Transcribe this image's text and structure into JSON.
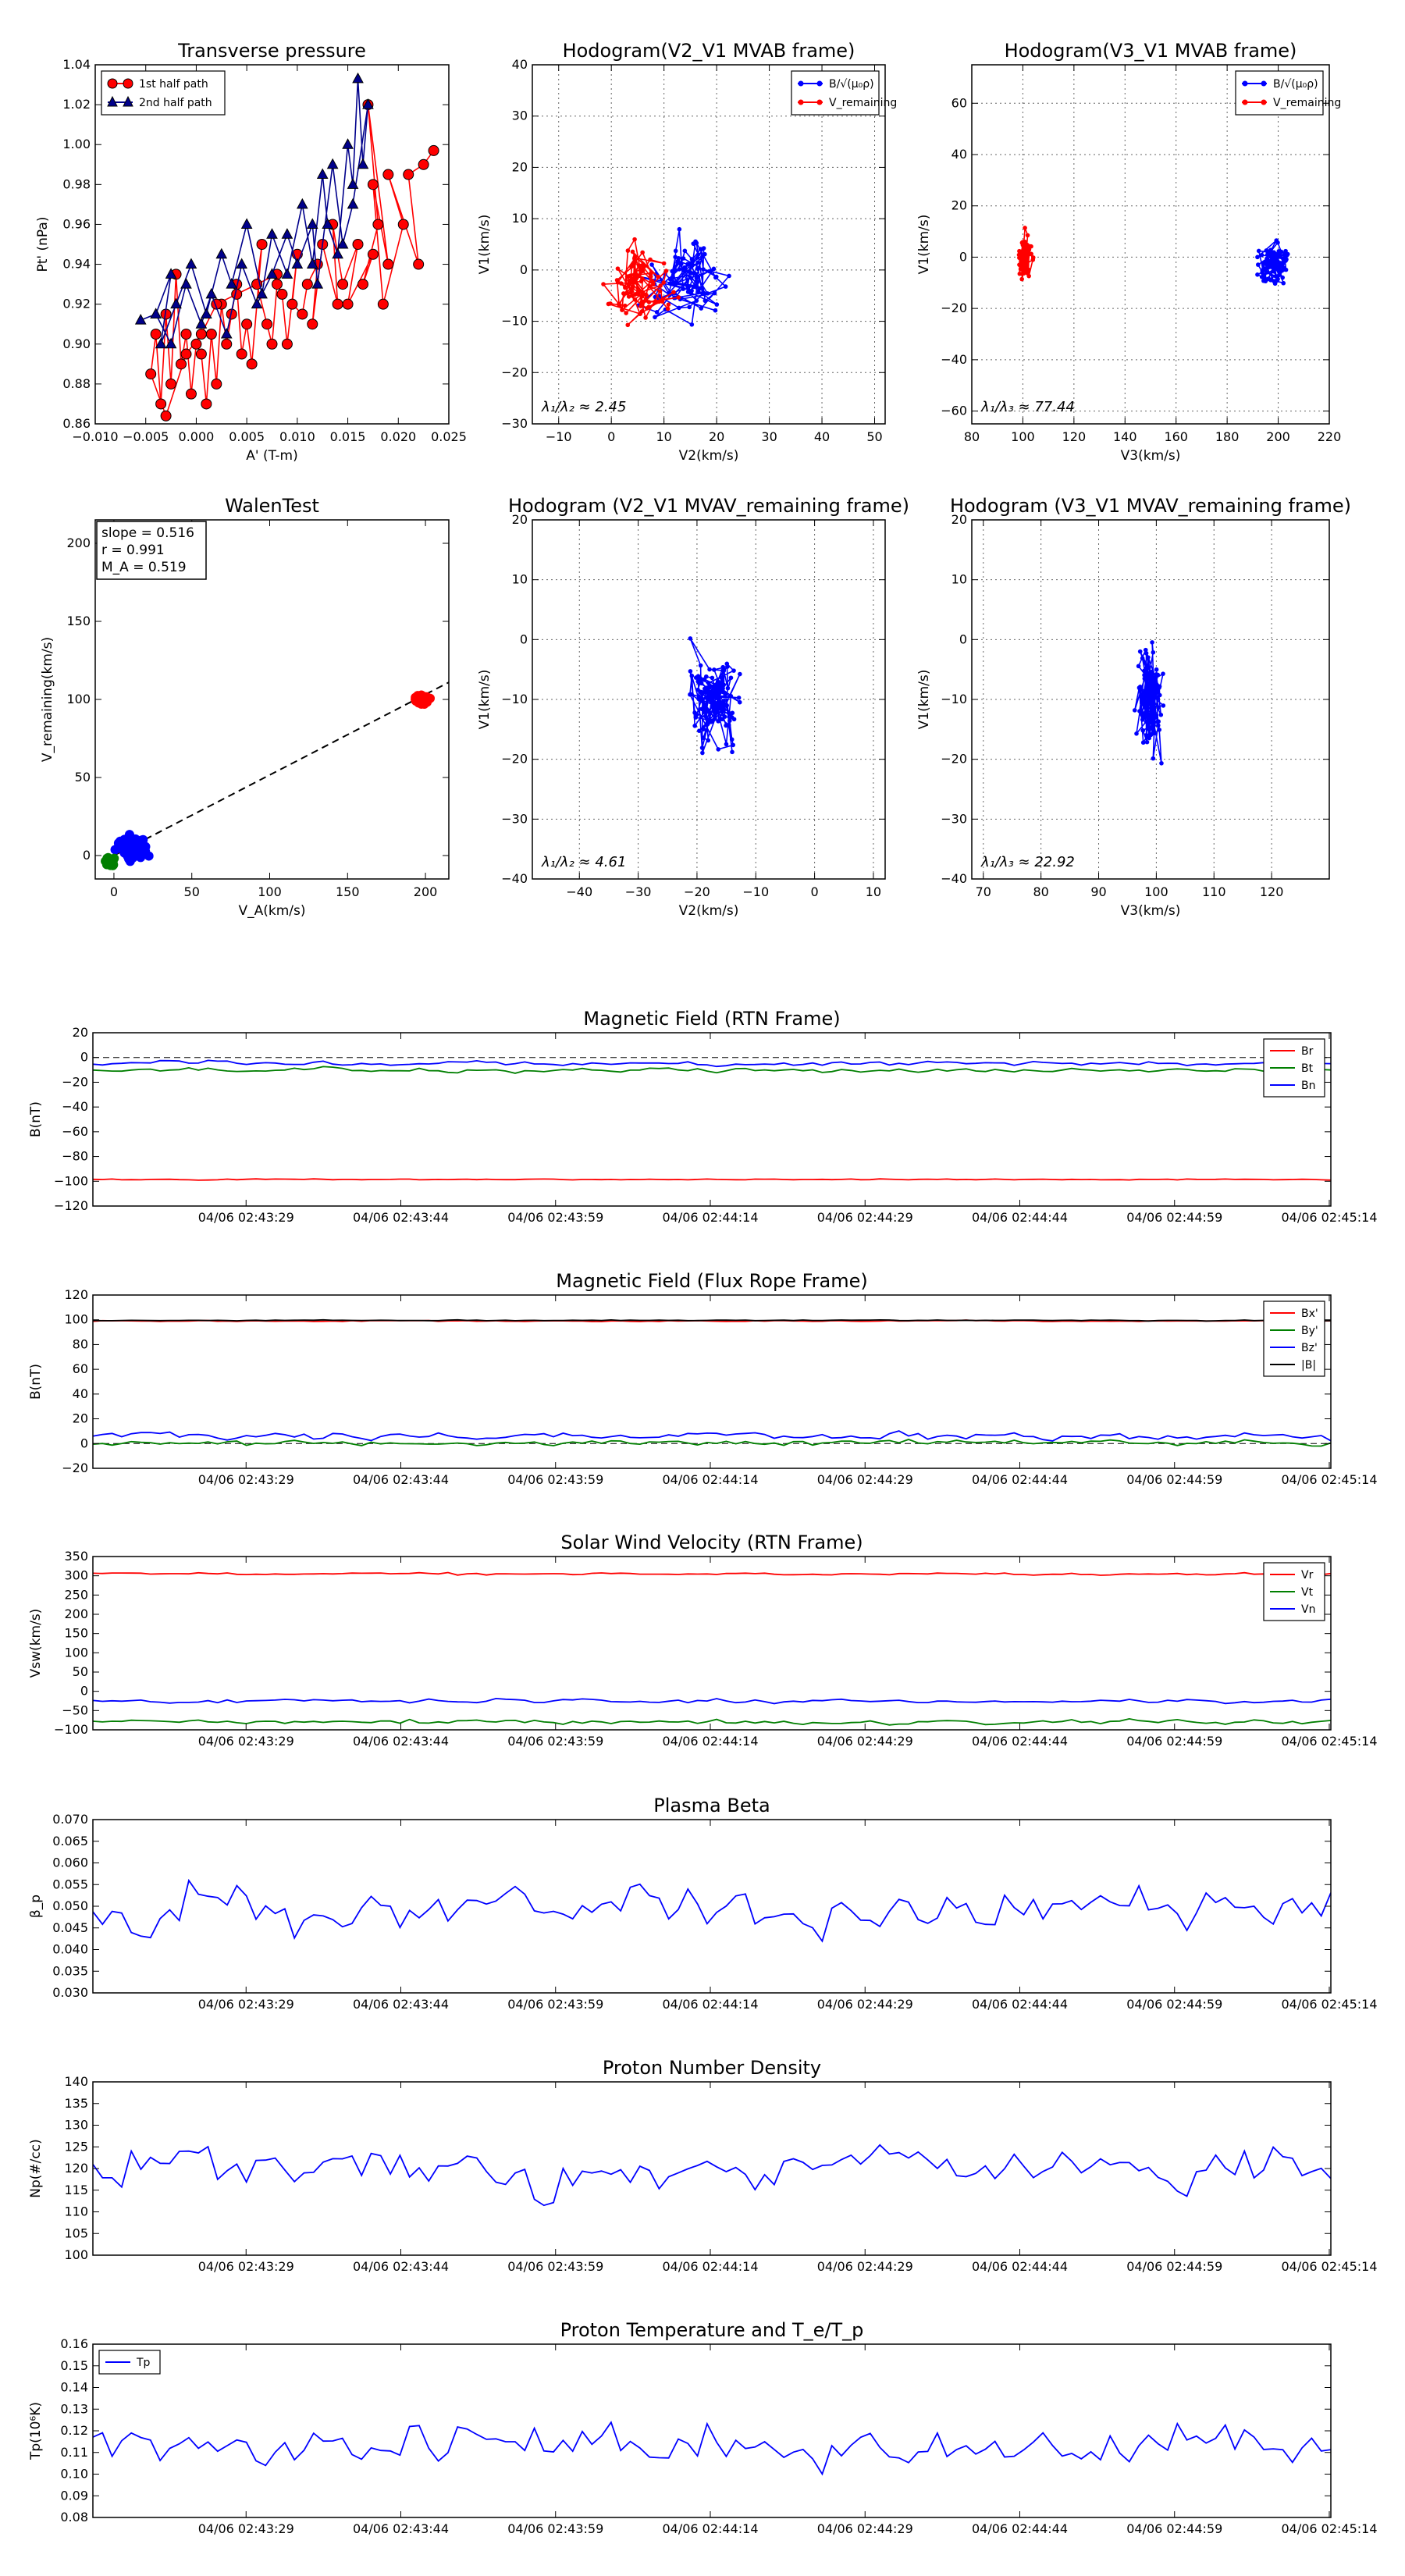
{
  "colors": {
    "red": "#ff0000",
    "blue": "#0000ff",
    "green": "#007f00",
    "black": "#000000",
    "darkblue": "#00008b",
    "darkred": "#b00000"
  },
  "time_ticks": [
    "04/06 02:43:29",
    "04/06 02:43:44",
    "04/06 02:43:59",
    "04/06 02:44:14",
    "04/06 02:44:29",
    "04/06 02:44:44",
    "04/06 02:44:59",
    "04/06 02:45:14"
  ],
  "chart_data": [
    {
      "id": "transverse-pressure",
      "type": "line",
      "title": "Transverse pressure",
      "xlabel": "A' (T-m)",
      "ylabel": "Pt' (nPa)",
      "xlim": [
        -0.01,
        0.025
      ],
      "ylim": [
        0.86,
        1.04
      ],
      "xticks": [
        -0.01,
        -0.005,
        0.0,
        0.005,
        0.01,
        0.015,
        0.02,
        0.025
      ],
      "xtick_labels": [
        "−0.010",
        "−0.005",
        "0.000",
        "0.005",
        "0.010",
        "0.015",
        "0.020",
        "0.025"
      ],
      "yticks": [
        0.86,
        0.88,
        0.9,
        0.92,
        0.94,
        0.96,
        0.98,
        1.0,
        1.02,
        1.04
      ],
      "ytick_labels": [
        "0.86",
        "0.88",
        "0.90",
        "0.92",
        "0.94",
        "0.96",
        "0.98",
        "1.00",
        "1.02",
        "1.04"
      ],
      "legend": [
        "1st half path",
        "2nd half path"
      ],
      "legend_position": "top-left",
      "series": [
        {
          "name": "1st half path",
          "color": "#ff0000",
          "marker": "circle",
          "x": [
            0.0235,
            0.0225,
            0.021,
            0.022,
            0.019,
            0.0205,
            0.0185,
            0.0175,
            0.019,
            0.017,
            0.018,
            0.0165,
            0.0175,
            0.015,
            0.016,
            0.0145,
            0.0135,
            0.014,
            0.0125,
            0.0115,
            0.012,
            0.011,
            0.0105,
            0.0095,
            0.01,
            0.009,
            0.0085,
            0.008,
            0.0075,
            0.007,
            0.006,
            0.0065,
            0.0055,
            0.005,
            0.0045,
            0.004,
            0.0035,
            0.003,
            0.0025,
            0.002,
            0.0015,
            0.001,
            0.0005,
            0.0,
            -0.0005,
            -0.001,
            -0.0015,
            -0.002,
            -0.0025,
            -0.003,
            -0.0035,
            -0.004,
            -0.0045,
            -0.003,
            -0.001,
            0.0005,
            0.002,
            0.004,
            0.006,
            0.008
          ],
          "y": [
            0.997,
            0.99,
            0.985,
            0.94,
            0.985,
            0.96,
            0.92,
            0.98,
            0.94,
            1.02,
            0.96,
            0.93,
            0.945,
            0.92,
            0.95,
            0.93,
            0.96,
            0.92,
            0.95,
            0.91,
            0.94,
            0.93,
            0.915,
            0.92,
            0.945,
            0.9,
            0.925,
            0.93,
            0.9,
            0.91,
            0.93,
            0.95,
            0.89,
            0.91,
            0.895,
            0.93,
            0.915,
            0.9,
            0.92,
            0.88,
            0.905,
            0.87,
            0.895,
            0.9,
            0.875,
            0.905,
            0.89,
            0.935,
            0.88,
            0.915,
            0.87,
            0.905,
            0.885,
            0.864,
            0.895,
            0.905,
            0.92,
            0.925,
            0.93,
            0.935
          ]
        },
        {
          "name": "2nd half path",
          "color": "#00008b",
          "marker": "triangle",
          "x": [
            -0.0055,
            -0.004,
            -0.0025,
            -0.0035,
            -0.002,
            -0.0005,
            0.001,
            0.0025,
            0.0035,
            0.005,
            0.0065,
            0.0075,
            0.009,
            0.0105,
            0.0115,
            0.0125,
            0.013,
            0.014,
            0.015,
            0.0155,
            0.016,
            0.0165,
            0.017,
            0.0155,
            0.0145,
            0.0135,
            0.012,
            0.0115,
            0.01,
            0.009,
            0.0075,
            0.006,
            0.0045,
            0.003,
            0.0015,
            0.0005,
            -0.001,
            -0.0025,
            -0.004
          ],
          "y": [
            0.912,
            0.915,
            0.935,
            0.9,
            0.92,
            0.94,
            0.915,
            0.945,
            0.93,
            0.96,
            0.925,
            0.955,
            0.935,
            0.97,
            0.94,
            0.985,
            0.96,
            0.945,
            1.0,
            0.98,
            1.033,
            0.99,
            1.02,
            0.97,
            0.95,
            0.99,
            0.93,
            0.96,
            0.94,
            0.955,
            0.935,
            0.92,
            0.94,
            0.905,
            0.925,
            0.91,
            0.93,
            0.9,
            0.915
          ]
        }
      ]
    },
    {
      "id": "hodogram-v2-v1-mvab",
      "type": "line",
      "title": "Hodogram(V2_V1 MVAB frame)",
      "xlabel": "V2(km/s)",
      "ylabel": "V1(km/s)",
      "xlim": [
        -15,
        52
      ],
      "ylim": [
        -30,
        40
      ],
      "xticks": [
        -10,
        0,
        10,
        20,
        30,
        40,
        50
      ],
      "yticks": [
        -30,
        -20,
        -10,
        0,
        10,
        20,
        30,
        40
      ],
      "legend": [
        "B/√(μ₀ρ)",
        "V_remaining"
      ],
      "legend_position": "top-right",
      "annotation": "λ₁/λ₂ ≈ 2.45",
      "series": [
        {
          "name": "B/√(μ₀ρ)",
          "color": "#0000ff",
          "generator": {
            "seed": 11,
            "n": 90,
            "cx": 14,
            "cy": -3,
            "sx": 8,
            "sy": 9,
            "xmin": 0,
            "xmax": 38,
            "ymin": -20,
            "ymax": 26
          }
        },
        {
          "name": "V_remaining",
          "color": "#ff0000",
          "generator": {
            "seed": 23,
            "n": 90,
            "cx": 5,
            "cy": -2,
            "sx": 6,
            "sy": 8,
            "xmin": -6,
            "xmax": 20,
            "ymin": -25,
            "ymax": 30
          }
        }
      ]
    },
    {
      "id": "hodogram-v3-v1-mvab",
      "type": "line",
      "title": "Hodogram(V3_V1 MVAB frame)",
      "xlabel": "V3(km/s)",
      "ylabel": "V1(km/s)",
      "xlim": [
        80,
        220
      ],
      "ylim": [
        -65,
        75
      ],
      "xticks": [
        80,
        100,
        120,
        140,
        160,
        180,
        200,
        220
      ],
      "yticks": [
        -60,
        -40,
        -20,
        0,
        20,
        40,
        60
      ],
      "legend": [
        "B/√(μ₀ρ)",
        "V_remaining"
      ],
      "legend_position": "top-right",
      "annotation": "λ₁/λ₃ ≈ 77.44",
      "series": [
        {
          "name": "B/√(μ₀ρ)",
          "color": "#0000ff",
          "generator": {
            "seed": 31,
            "n": 90,
            "cx": 198,
            "cy": -2,
            "sx": 7,
            "sy": 9,
            "xmin": 186,
            "xmax": 215,
            "ymin": -22,
            "ymax": 27
          }
        },
        {
          "name": "V_remaining",
          "color": "#ff0000",
          "generator": {
            "seed": 47,
            "n": 90,
            "cx": 101,
            "cy": 0,
            "sx": 2.5,
            "sy": 11,
            "xmin": 94,
            "xmax": 108,
            "ymin": -25,
            "ymax": 30
          }
        }
      ]
    },
    {
      "id": "walen-test",
      "type": "scatter",
      "title": "WalenTest",
      "xlabel": "V_A(km/s)",
      "ylabel": "V_remaining(km/s)",
      "xlim": [
        -12,
        215
      ],
      "ylim": [
        -15,
        215
      ],
      "xticks": [
        0,
        50,
        100,
        150,
        200
      ],
      "yticks": [
        0,
        50,
        100,
        150,
        200
      ],
      "stats": [
        "slope = 0.516",
        "r = 0.991",
        "M_A = 0.519"
      ],
      "fit": {
        "slope": 0.516,
        "intercept": 0,
        "style": "dashed"
      },
      "series": [
        {
          "name": "group-red",
          "color": "#ff0000",
          "generator": {
            "seed": 5,
            "n": 60,
            "cx": 198,
            "cy": 100,
            "sx": 5,
            "sy": 3,
            "xmin": 185,
            "xmax": 210,
            "ymin": 93,
            "ymax": 110
          }
        },
        {
          "name": "group-blue",
          "color": "#0000ff",
          "generator": {
            "seed": 9,
            "n": 110,
            "cx": 12,
            "cy": 5,
            "sx": 10,
            "sy": 9,
            "xmin": -5,
            "xmax": 45,
            "ymin": -8,
            "ymax": 38
          }
        },
        {
          "name": "group-green",
          "color": "#007f00",
          "generator": {
            "seed": 13,
            "n": 35,
            "cx": -3,
            "cy": -4,
            "sx": 3,
            "sy": 3,
            "xmin": -10,
            "xmax": 4,
            "ymin": -12,
            "ymax": 2
          }
        }
      ]
    },
    {
      "id": "hodogram-v2-v1-mvav",
      "type": "line",
      "title": "Hodogram (V2_V1 MVAV_remaining frame)",
      "xlabel": "V2(km/s)",
      "ylabel": "V1(km/s)",
      "xlim": [
        -48,
        12
      ],
      "ylim": [
        -40,
        20
      ],
      "xticks": [
        -40,
        -30,
        -20,
        -10,
        0,
        10
      ],
      "yticks": [
        -40,
        -30,
        -20,
        -10,
        0,
        10,
        20
      ],
      "annotation": "λ₁/λ₂ ≈ 4.61",
      "series": [
        {
          "name": "V_remaining",
          "color": "#0000ff",
          "generator": {
            "seed": 61,
            "n": 130,
            "cx": -17,
            "cy": -11,
            "sx": 5,
            "sy": 9,
            "xmin": -32,
            "xmax": -3,
            "ymin": -35,
            "ymax": 19
          }
        }
      ]
    },
    {
      "id": "hodogram-v3-v1-mvav",
      "type": "line",
      "title": "Hodogram (V3_V1 MVAV_remaining frame)",
      "xlabel": "V3(km/s)",
      "ylabel": "V1(km/s)",
      "xlim": [
        68,
        130
      ],
      "ylim": [
        -40,
        20
      ],
      "xticks": [
        70,
        80,
        90,
        100,
        110,
        120
      ],
      "yticks": [
        -40,
        -30,
        -20,
        -10,
        0,
        10,
        20
      ],
      "annotation": "λ₁/λ₃ ≈ 22.92",
      "series": [
        {
          "name": "V_remaining",
          "color": "#0000ff",
          "generator": {
            "seed": 71,
            "n": 130,
            "cx": 99,
            "cy": -11,
            "sx": 2.5,
            "sy": 9,
            "xmin": 93,
            "xmax": 106,
            "ymin": -33,
            "ymax": 19
          }
        }
      ]
    },
    {
      "id": "magnetic-field-rtn",
      "type": "line",
      "title": "Magnetic Field (RTN Frame)",
      "ylabel": "B(nT)",
      "ylim": [
        -120,
        20
      ],
      "yticks": [
        -120,
        -100,
        -80,
        -60,
        -40,
        -20,
        0,
        20
      ],
      "zero_line": true,
      "legend": [
        "Br",
        "Bt",
        "Bn"
      ],
      "legend_position": "top-right",
      "series": [
        {
          "name": "Br",
          "color": "#ff0000",
          "generator": {
            "seed": 101,
            "n": 130,
            "base": -98.5,
            "amp": 0.6
          }
        },
        {
          "name": "Bt",
          "color": "#007f00",
          "generator": {
            "seed": 102,
            "n": 130,
            "base": -10,
            "amp": 2.5
          }
        },
        {
          "name": "Bn",
          "color": "#0000ff",
          "generator": {
            "seed": 103,
            "n": 130,
            "base": -5,
            "amp": 2.5
          }
        }
      ]
    },
    {
      "id": "magnetic-field-flux-rope",
      "type": "line",
      "title": "Magnetic Field (Flux Rope Frame)",
      "ylabel": "B(nT)",
      "ylim": [
        -20,
        120
      ],
      "yticks": [
        -20,
        0,
        20,
        40,
        60,
        80,
        100,
        120
      ],
      "zero_line": true,
      "legend": [
        "Bx'",
        "By'",
        "Bz'",
        "|B|"
      ],
      "legend_position": "top-right",
      "series": [
        {
          "name": "Bx'",
          "color": "#ff0000",
          "generator": {
            "seed": 201,
            "n": 130,
            "base": 99,
            "amp": 0.6
          }
        },
        {
          "name": "By'",
          "color": "#007f00",
          "generator": {
            "seed": 202,
            "n": 130,
            "base": 1,
            "amp": 3
          }
        },
        {
          "name": "Bz'",
          "color": "#0000ff",
          "generator": {
            "seed": 203,
            "n": 130,
            "base": 6,
            "amp": 4
          }
        },
        {
          "name": "|B|",
          "color": "#000000",
          "generator": {
            "seed": 204,
            "n": 130,
            "base": 99.5,
            "amp": 0.5
          }
        }
      ]
    },
    {
      "id": "solar-wind-velocity",
      "type": "line",
      "title": "Solar Wind Velocity (RTN Frame)",
      "ylabel": "Vsw(km/s)",
      "ylim": [
        -100,
        350
      ],
      "yticks": [
        -100,
        -50,
        0,
        50,
        100,
        150,
        200,
        250,
        300,
        350
      ],
      "legend": [
        "Vr",
        "Vt",
        "Vn"
      ],
      "legend_position": "top-right",
      "series": [
        {
          "name": "Vr",
          "color": "#ff0000",
          "generator": {
            "seed": 301,
            "n": 130,
            "base": 305,
            "amp": 4
          }
        },
        {
          "name": "Vt",
          "color": "#007f00",
          "generator": {
            "seed": 302,
            "n": 130,
            "base": -80,
            "amp": 8
          }
        },
        {
          "name": "Vn",
          "color": "#0000ff",
          "generator": {
            "seed": 303,
            "n": 130,
            "base": -25,
            "amp": 7
          }
        }
      ]
    },
    {
      "id": "plasma-beta",
      "type": "line",
      "title": "Plasma Beta",
      "ylabel": "β_p",
      "ylim": [
        0.03,
        0.07
      ],
      "yticks": [
        0.03,
        0.035,
        0.04,
        0.045,
        0.05,
        0.055,
        0.06,
        0.065,
        0.07
      ],
      "ytick_labels": [
        "0.030",
        "0.035",
        "0.040",
        "0.045",
        "0.050",
        "0.055",
        "0.060",
        "0.065",
        "0.070"
      ],
      "series": [
        {
          "name": "beta",
          "color": "#0000ff",
          "generator": {
            "seed": 401,
            "n": 130,
            "base": 0.049,
            "amp": 0.007
          }
        }
      ]
    },
    {
      "id": "proton-number-density",
      "type": "line",
      "title": "Proton Number Density",
      "ylabel": "Np(#/cc)",
      "ylim": [
        100,
        140
      ],
      "yticks": [
        100,
        105,
        110,
        115,
        120,
        125,
        130,
        135,
        140
      ],
      "series": [
        {
          "name": "Np",
          "color": "#0000ff",
          "generator": {
            "seed": 501,
            "n": 130,
            "base": 120,
            "amp": 7
          }
        }
      ]
    },
    {
      "id": "proton-temperature",
      "type": "line",
      "title": "Proton Temperature and T_e/T_p",
      "ylabel": "Tp(10⁶K)",
      "ylim": [
        0.08,
        0.16
      ],
      "yticks": [
        0.08,
        0.09,
        0.1,
        0.11,
        0.12,
        0.13,
        0.14,
        0.15,
        0.16
      ],
      "ytick_labels": [
        "0.08",
        "0.09",
        "0.10",
        "0.11",
        "0.12",
        "0.13",
        "0.14",
        "0.15",
        "0.16"
      ],
      "legend": [
        "Tp"
      ],
      "legend_position": "top-left",
      "series": [
        {
          "name": "Tp",
          "color": "#0000ff",
          "generator": {
            "seed": 601,
            "n": 130,
            "base": 0.113,
            "amp": 0.013
          }
        }
      ]
    }
  ]
}
